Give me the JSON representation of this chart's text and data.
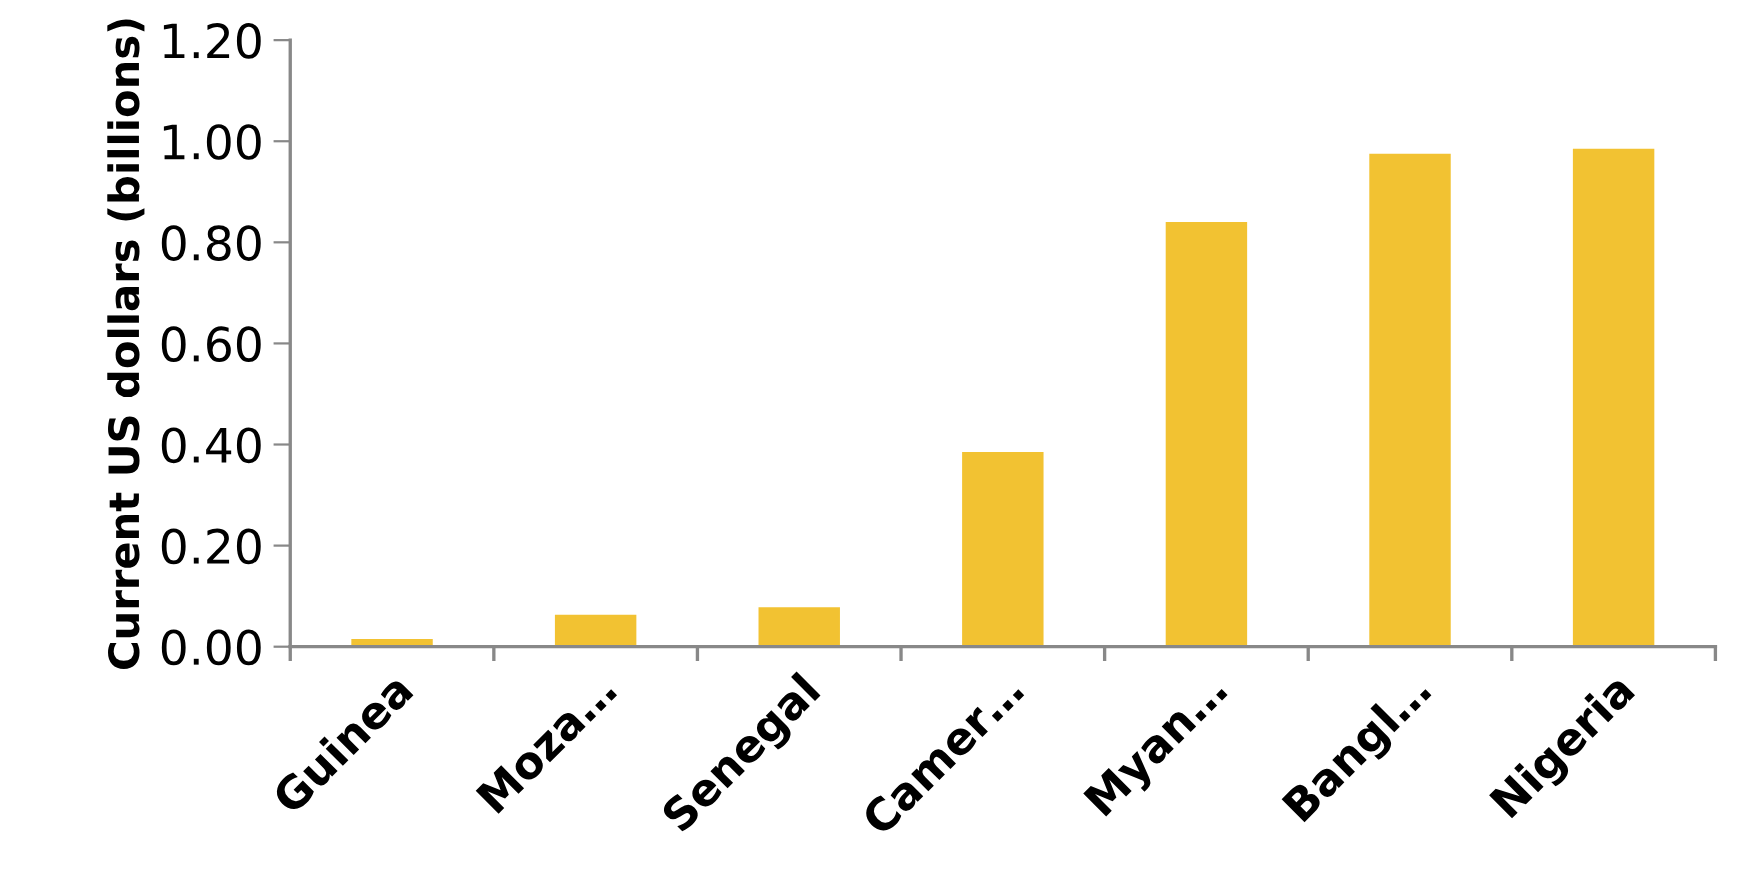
{
  "chart_data": {
    "type": "bar",
    "ylabel": "Current US dollars (billions)",
    "categories": [
      "Guinea",
      "Moza…",
      "Senegal",
      "Camer…",
      "Myan…",
      "Bangl…",
      "Nigeria"
    ],
    "values": [
      0.015,
      0.063,
      0.078,
      0.385,
      0.84,
      0.975,
      0.985
    ],
    "color": "#f2c232",
    "ylim": [
      0,
      1.2
    ],
    "yticks": [
      {
        "value": 0,
        "label": "0.00"
      },
      {
        "value": 0.2,
        "label": "0.20"
      },
      {
        "value": 0.4,
        "label": "0.40"
      },
      {
        "value": 0.6,
        "label": "0.60"
      },
      {
        "value": 0.8,
        "label": "0.80"
      },
      {
        "value": 1.0,
        "label": "1.00"
      },
      {
        "value": 1.2,
        "label": "1.20"
      }
    ],
    "grid": false,
    "legend": false
  }
}
